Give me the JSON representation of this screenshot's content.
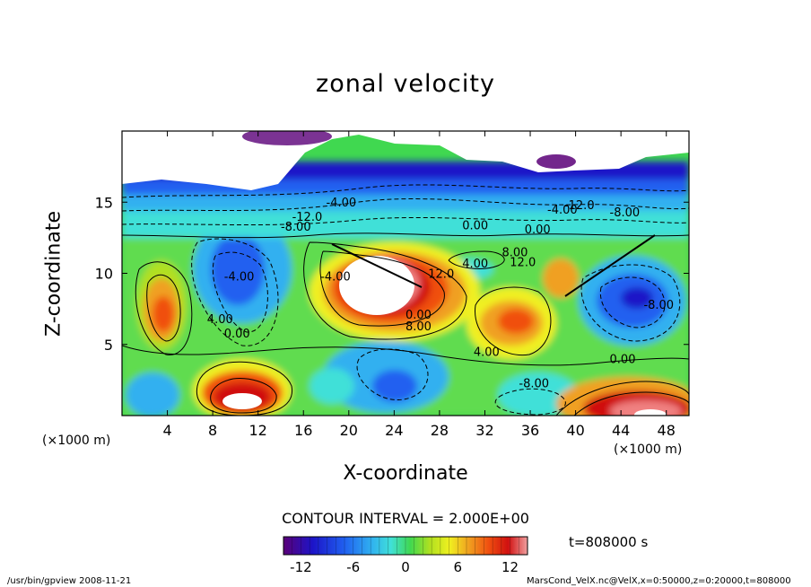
{
  "chart_data": {
    "type": "heatmap",
    "title": "zonal velocity",
    "xlabel": "X-coordinate",
    "ylabel": "Z-coordinate",
    "x_unit": "(×1000 m)",
    "y_unit": "(×1000 m)",
    "xlim": [
      0,
      50
    ],
    "ylim": [
      0,
      20
    ],
    "x_ticks": [
      "4",
      "8",
      "12",
      "16",
      "20",
      "24",
      "28",
      "32",
      "36",
      "40",
      "44",
      "48"
    ],
    "y_ticks": [
      "5",
      "10",
      "15"
    ],
    "contour_interval": "CONTOUR INTERVAL = 2.000E+00",
    "colorbar_ticks": [
      "-12",
      "-6",
      "0",
      "6",
      "12"
    ],
    "colorbar_range": [
      -14,
      14
    ],
    "colormap": [
      "#5a0078",
      "#1c14c8",
      "#2060f0",
      "#30b0f0",
      "#40e0d8",
      "#40d850",
      "#b0e020",
      "#f0f020",
      "#f0a020",
      "#f05010",
      "#d01010",
      "#f08080",
      "#ffffff"
    ],
    "time": "t=808000 s",
    "contour_labels": [
      "-12.0",
      "-8.00",
      "-4.00",
      "0.00",
      "4.00",
      "8.00",
      "12.0",
      "-4.00",
      "0.00",
      "-4.00",
      "0.00",
      "4.00",
      "-4.00",
      "0.00",
      "8.00",
      "12.0",
      "-12.0",
      "-8.00",
      "-8.00",
      "0.00",
      "4.00",
      "-8.00"
    ],
    "regions": [
      {
        "name": "upper-undefined-white",
        "value": null
      },
      {
        "name": "strong-negative-band",
        "value": -10
      },
      {
        "name": "jet-core-positive",
        "value": 12
      },
      {
        "name": "east-negative-eddy",
        "value": -8
      },
      {
        "name": "west-positive-eddy",
        "value": 8
      }
    ]
  },
  "footer": {
    "left": "/usr/bin/gpview   2008-11-21",
    "right": "MarsCond_VelX.nc@VelX,x=0:50000,z=0:20000,t=808000"
  }
}
